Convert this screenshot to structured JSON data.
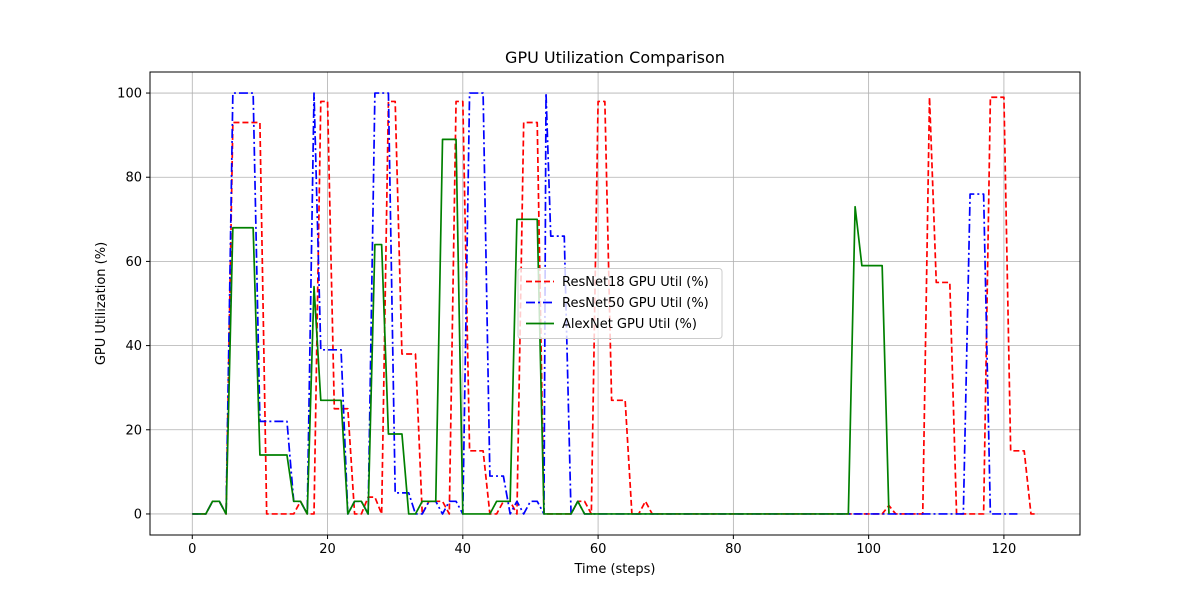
{
  "chart_data": {
    "type": "line",
    "title": "GPU Utilization Comparison",
    "xlabel": "Time (steps)",
    "ylabel": "GPU Utilization (%)",
    "xlim": [
      -6.25,
      131.25
    ],
    "ylim": [
      -5,
      105
    ],
    "xticks": [
      0,
      20,
      40,
      60,
      80,
      100,
      120
    ],
    "yticks": [
      0,
      20,
      40,
      60,
      80,
      100
    ],
    "grid": true,
    "legend_position": "center",
    "series": [
      {
        "name": "ResNet18 GPU Util (%)",
        "color": "#ff0000",
        "style": "dashed",
        "points": [
          [
            0,
            0
          ],
          [
            1,
            0
          ],
          [
            2,
            0
          ],
          [
            3,
            3
          ],
          [
            4,
            3
          ],
          [
            5,
            0
          ],
          [
            6,
            93
          ],
          [
            7,
            93
          ],
          [
            8,
            93
          ],
          [
            9,
            93
          ],
          [
            10,
            93
          ],
          [
            11,
            0
          ],
          [
            12,
            0
          ],
          [
            13,
            0
          ],
          [
            14,
            0
          ],
          [
            15,
            0
          ],
          [
            16,
            3
          ],
          [
            17,
            0
          ],
          [
            18,
            0
          ],
          [
            19,
            98
          ],
          [
            20,
            98
          ],
          [
            21,
            25
          ],
          [
            22,
            25
          ],
          [
            23,
            25
          ],
          [
            24,
            0
          ],
          [
            25,
            0
          ],
          [
            26,
            4
          ],
          [
            27,
            4
          ],
          [
            28,
            0
          ],
          [
            29,
            98
          ],
          [
            30,
            98
          ],
          [
            31,
            38
          ],
          [
            32,
            38
          ],
          [
            33,
            38
          ],
          [
            34,
            0
          ],
          [
            35,
            3
          ],
          [
            36,
            3
          ],
          [
            37,
            3
          ],
          [
            38,
            0
          ],
          [
            39,
            98
          ],
          [
            40,
            98
          ],
          [
            41,
            15
          ],
          [
            42,
            15
          ],
          [
            43,
            15
          ],
          [
            44,
            0
          ],
          [
            45,
            0
          ],
          [
            46,
            3
          ],
          [
            47,
            3
          ],
          [
            48,
            0
          ],
          [
            49,
            93
          ],
          [
            50,
            93
          ],
          [
            51,
            93
          ],
          [
            52,
            0
          ],
          [
            53,
            0
          ],
          [
            54,
            0
          ],
          [
            55,
            0
          ],
          [
            56,
            0
          ],
          [
            57,
            3
          ],
          [
            58,
            3
          ],
          [
            59,
            0
          ],
          [
            60,
            98
          ],
          [
            61,
            98
          ],
          [
            62,
            27
          ],
          [
            63,
            27
          ],
          [
            64,
            27
          ],
          [
            65,
            0
          ],
          [
            66,
            0
          ],
          [
            67,
            3
          ],
          [
            68,
            0
          ],
          [
            69,
            0
          ],
          [
            70,
            0
          ],
          [
            75,
            0
          ],
          [
            80,
            0
          ],
          [
            85,
            0
          ],
          [
            90,
            0
          ],
          [
            95,
            0
          ],
          [
            100,
            0
          ],
          [
            101,
            0
          ],
          [
            102,
            0
          ],
          [
            103,
            2
          ],
          [
            104,
            0
          ],
          [
            105,
            0
          ],
          [
            106,
            0
          ],
          [
            107,
            0
          ],
          [
            108,
            0
          ],
          [
            109,
            99
          ],
          [
            110,
            55
          ],
          [
            111,
            55
          ],
          [
            112,
            55
          ],
          [
            113,
            0
          ],
          [
            114,
            0
          ],
          [
            115,
            0
          ],
          [
            116,
            0
          ],
          [
            117,
            0
          ],
          [
            118,
            99
          ],
          [
            119,
            99
          ],
          [
            120,
            99
          ],
          [
            121,
            15
          ],
          [
            122,
            15
          ],
          [
            123,
            15
          ],
          [
            124,
            0
          ],
          [
            125,
            0
          ]
        ]
      },
      {
        "name": "ResNet50 GPU Util (%)",
        "color": "#0000ff",
        "style": "dashdot",
        "points": [
          [
            0,
            0
          ],
          [
            1,
            0
          ],
          [
            2,
            0
          ],
          [
            3,
            3
          ],
          [
            4,
            3
          ],
          [
            5,
            0
          ],
          [
            6,
            100
          ],
          [
            7,
            100
          ],
          [
            8,
            100
          ],
          [
            9,
            100
          ],
          [
            10,
            22
          ],
          [
            11,
            22
          ],
          [
            12,
            22
          ],
          [
            13,
            22
          ],
          [
            14,
            22
          ],
          [
            15,
            3
          ],
          [
            16,
            3
          ],
          [
            17,
            0
          ],
          [
            18,
            100
          ],
          [
            19,
            39
          ],
          [
            20,
            39
          ],
          [
            21,
            39
          ],
          [
            22,
            39
          ],
          [
            23,
            0
          ],
          [
            24,
            3
          ],
          [
            25,
            3
          ],
          [
            26,
            0
          ],
          [
            27,
            100
          ],
          [
            28,
            100
          ],
          [
            29,
            100
          ],
          [
            30,
            5
          ],
          [
            31,
            5
          ],
          [
            32,
            5
          ],
          [
            33,
            0
          ],
          [
            34,
            0
          ],
          [
            35,
            3
          ],
          [
            36,
            3
          ],
          [
            37,
            0
          ],
          [
            38,
            3
          ],
          [
            39,
            3
          ],
          [
            40,
            0
          ],
          [
            41,
            100
          ],
          [
            42,
            100
          ],
          [
            43,
            100
          ],
          [
            44,
            9
          ],
          [
            45,
            9
          ],
          [
            46,
            9
          ],
          [
            47,
            0
          ],
          [
            48,
            3
          ],
          [
            49,
            0
          ],
          [
            50,
            3
          ],
          [
            51,
            3
          ],
          [
            52,
            0
          ],
          [
            52.3,
            100
          ],
          [
            53,
            66
          ],
          [
            54,
            66
          ],
          [
            55,
            66
          ],
          [
            56,
            0
          ],
          [
            57,
            3
          ],
          [
            58,
            0
          ],
          [
            59,
            0
          ],
          [
            60,
            0
          ],
          [
            65,
            0
          ],
          [
            70,
            0
          ],
          [
            75,
            0
          ],
          [
            80,
            0
          ],
          [
            85,
            0
          ],
          [
            90,
            0
          ],
          [
            95,
            0
          ],
          [
            100,
            0
          ],
          [
            105,
            0
          ],
          [
            110,
            0
          ],
          [
            112,
            0
          ],
          [
            113,
            0
          ],
          [
            114,
            0
          ],
          [
            115,
            76
          ],
          [
            116,
            76
          ],
          [
            117,
            76
          ],
          [
            118,
            0
          ],
          [
            119,
            0
          ],
          [
            120,
            0
          ],
          [
            121,
            0
          ],
          [
            122,
            0
          ]
        ]
      },
      {
        "name": "AlexNet GPU Util (%)",
        "color": "#008000",
        "style": "solid",
        "points": [
          [
            0,
            0
          ],
          [
            1,
            0
          ],
          [
            2,
            0
          ],
          [
            3,
            3
          ],
          [
            4,
            3
          ],
          [
            5,
            0
          ],
          [
            6,
            68
          ],
          [
            7,
            68
          ],
          [
            8,
            68
          ],
          [
            9,
            68
          ],
          [
            10,
            14
          ],
          [
            11,
            14
          ],
          [
            12,
            14
          ],
          [
            13,
            14
          ],
          [
            14,
            14
          ],
          [
            15,
            3
          ],
          [
            16,
            3
          ],
          [
            17,
            0
          ],
          [
            18,
            54
          ],
          [
            19,
            27
          ],
          [
            20,
            27
          ],
          [
            21,
            27
          ],
          [
            22,
            27
          ],
          [
            23,
            0
          ],
          [
            24,
            3
          ],
          [
            25,
            3
          ],
          [
            26,
            0
          ],
          [
            27,
            64
          ],
          [
            28,
            64
          ],
          [
            29,
            19
          ],
          [
            30,
            19
          ],
          [
            31,
            19
          ],
          [
            32,
            0
          ],
          [
            33,
            0
          ],
          [
            34,
            3
          ],
          [
            35,
            3
          ],
          [
            36,
            3
          ],
          [
            37,
            89
          ],
          [
            38,
            89
          ],
          [
            39,
            89
          ],
          [
            40,
            0
          ],
          [
            41,
            0
          ],
          [
            42,
            0
          ],
          [
            43,
            0
          ],
          [
            44,
            0
          ],
          [
            45,
            3
          ],
          [
            46,
            3
          ],
          [
            47,
            3
          ],
          [
            48,
            70
          ],
          [
            49,
            70
          ],
          [
            50,
            70
          ],
          [
            51,
            70
          ],
          [
            52,
            0
          ],
          [
            53,
            0
          ],
          [
            54,
            0
          ],
          [
            55,
            0
          ],
          [
            56,
            0
          ],
          [
            57,
            3
          ],
          [
            58,
            0
          ],
          [
            59,
            0
          ],
          [
            60,
            0
          ],
          [
            65,
            0
          ],
          [
            70,
            0
          ],
          [
            75,
            0
          ],
          [
            80,
            0
          ],
          [
            85,
            0
          ],
          [
            90,
            0
          ],
          [
            95,
            0
          ],
          [
            97,
            0
          ],
          [
            98,
            73
          ],
          [
            99,
            59
          ],
          [
            100,
            59
          ],
          [
            101,
            59
          ],
          [
            102,
            59
          ],
          [
            103,
            0
          ]
        ]
      }
    ]
  }
}
